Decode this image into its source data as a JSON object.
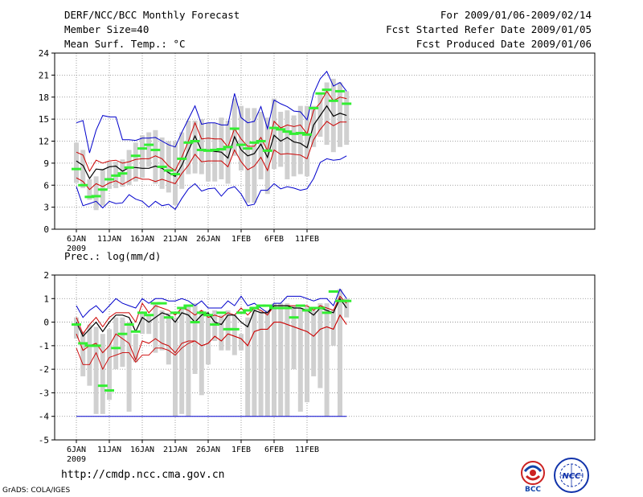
{
  "header": {
    "title": "DERF/NCC/BCC Monthly Forecast",
    "member": "Member Size=40",
    "variable": "Mean Surf. Temp.: °C",
    "period": "For 2009/01/06-2009/02/14",
    "refer": "Fcst Started Refer Date 2009/01/05",
    "produced": "Fcst Produced Date 2009/01/06"
  },
  "footer": {
    "url": "http://cmdp.ncc.cma.gov.cn",
    "credit": "GrADS: COLA/IGES"
  },
  "logos": {
    "bcc": "BCC",
    "ncc": "NCC"
  },
  "colors": {
    "envelope": "#0000cc",
    "spread": "#cc0000",
    "mean": "#000000",
    "member_box": "#d0d0d0",
    "observed": "#33ee33",
    "grid": "#888888"
  },
  "chart_data": [
    {
      "type": "box_line",
      "title": "Mean Surf. Temp.: °C",
      "ylim": [
        0,
        24
      ],
      "yticks": [
        0,
        3,
        6,
        9,
        12,
        15,
        18,
        21,
        24
      ],
      "xtick_labels": [
        "6JAN",
        "11JAN",
        "16JAN",
        "21JAN",
        "26JAN",
        "1FEB",
        "6FEB",
        "11FEB"
      ],
      "xtick_year": "2009",
      "max": [
        14.5,
        14.8,
        10.4,
        13.5,
        15.5,
        15.3,
        15.3,
        12.2,
        12.2,
        12.1,
        12.4,
        12.4,
        12.5,
        12.0,
        11.5,
        11.2,
        13.2,
        15.0,
        16.8,
        14.3,
        14.5,
        14.5,
        14.2,
        14.2,
        18.5,
        15.2,
        14.5,
        14.7,
        16.7,
        13.7,
        17.6,
        17.1,
        16.7,
        16.1,
        16.0,
        14.9,
        18.5,
        20.5,
        21.5,
        19.5,
        20.0,
        18.8
      ],
      "p75": [
        10.5,
        10.1,
        7.9,
        9.4,
        9.0,
        9.3,
        9.4,
        9.0,
        9.2,
        9.5,
        9.6,
        9.6,
        10.0,
        9.6,
        8.6,
        8.0,
        9.8,
        12.0,
        14.5,
        12.3,
        12.4,
        12.3,
        12.3,
        11.2,
        13.7,
        12.3,
        11.3,
        11.3,
        12.5,
        10.7,
        14.7,
        13.8,
        14.2,
        14.0,
        14.2,
        13.0,
        16.2,
        17.2,
        18.8,
        17.5,
        18.0,
        17.8
      ],
      "mean": [
        9.3,
        8.7,
        6.9,
        8.2,
        8.1,
        8.5,
        8.6,
        7.9,
        8.4,
        8.4,
        8.3,
        8.3,
        8.6,
        8.3,
        7.7,
        7.2,
        8.7,
        10.7,
        12.7,
        10.7,
        10.8,
        10.6,
        10.5,
        9.7,
        12.6,
        10.8,
        10.0,
        10.3,
        11.6,
        9.8,
        12.8,
        12.0,
        12.5,
        11.9,
        11.7,
        11.1,
        14.2,
        15.5,
        16.8,
        15.4,
        15.8,
        15.5
      ],
      "p25": [
        7.0,
        6.5,
        5.4,
        6.2,
        5.8,
        6.3,
        6.6,
        6.1,
        6.6,
        7.1,
        6.8,
        6.8,
        6.5,
        6.8,
        6.5,
        6.2,
        7.6,
        8.7,
        10.2,
        9.2,
        9.3,
        9.3,
        9.3,
        8.5,
        10.8,
        9.2,
        8.1,
        8.6,
        9.8,
        8.0,
        10.8,
        10.2,
        10.3,
        10.2,
        10.1,
        9.6,
        12.2,
        13.6,
        14.7,
        14.1,
        14.6,
        14.6
      ],
      "min": [
        5.8,
        3.2,
        3.5,
        3.8,
        2.9,
        3.8,
        3.5,
        3.6,
        4.7,
        4.1,
        3.8,
        3.0,
        3.8,
        3.2,
        3.4,
        2.7,
        4.2,
        5.5,
        6.2,
        5.2,
        5.5,
        5.6,
        4.5,
        5.5,
        5.8,
        4.8,
        3.2,
        3.4,
        5.3,
        5.3,
        6.2,
        5.5,
        5.8,
        5.6,
        5.3,
        5.5,
        6.9,
        9.1,
        9.6,
        9.4,
        9.5,
        10.0
      ],
      "box_high": [
        11.8,
        10.8,
        6.8,
        7.2,
        8.2,
        9.2,
        9.2,
        9.5,
        10.8,
        11.8,
        12.8,
        13.2,
        13.5,
        12.5,
        12.0,
        12.0,
        13.2,
        14.8,
        14.8,
        15.0,
        14.5,
        14.5,
        15.2,
        14.8,
        17.8,
        16.8,
        16.5,
        16.5,
        16.0,
        15.2,
        17.8,
        16.0,
        16.2,
        15.5,
        16.8,
        16.8,
        16.8,
        18.5,
        20.0,
        20.5,
        20.0,
        18.8
      ],
      "box_low": [
        6.3,
        5.6,
        4.0,
        2.6,
        3.2,
        5.5,
        5.6,
        5.8,
        6.0,
        6.5,
        7.0,
        8.5,
        6.2,
        5.5,
        5.0,
        3.3,
        5.5,
        7.5,
        7.6,
        7.5,
        6.5,
        6.5,
        6.8,
        6.2,
        10.0,
        8.0,
        3.6,
        3.6,
        6.8,
        4.8,
        8.2,
        8.5,
        6.8,
        7.2,
        7.5,
        7.2,
        11.2,
        12.6,
        11.5,
        10.5,
        11.2,
        11.5
      ],
      "observed": [
        8.2,
        6.0,
        4.4,
        4.5,
        5.4,
        6.8,
        7.3,
        7.6,
        8.4,
        10.0,
        11.0,
        11.5,
        10.8,
        8.5,
        8.0,
        7.5,
        9.6,
        11.8,
        12.0,
        10.8,
        10.7,
        10.8,
        10.9,
        11.2,
        13.7,
        11.5,
        11.0,
        11.8,
        12.0,
        10.7,
        13.8,
        13.6,
        13.3,
        13.0,
        13.1,
        12.9,
        16.5,
        18.5,
        19.0,
        17.5,
        18.8,
        17.1
      ]
    },
    {
      "type": "box_line",
      "title": "Prec.: log(mm/d)",
      "ylim": [
        -5,
        2
      ],
      "yticks": [
        -5,
        -4,
        -3,
        -2,
        -1,
        0,
        1,
        2
      ],
      "xtick_labels": [
        "6JAN",
        "11JAN",
        "16JAN",
        "21JAN",
        "26JAN",
        "1FEB",
        "6FEB",
        "11FEB"
      ],
      "xtick_year": "2009",
      "max": [
        0.7,
        0.2,
        0.5,
        0.7,
        0.4,
        0.7,
        1.0,
        0.8,
        0.7,
        0.6,
        1.0,
        0.8,
        1.0,
        1.0,
        0.9,
        0.9,
        1.0,
        0.9,
        0.7,
        0.9,
        0.6,
        0.6,
        0.6,
        0.9,
        0.7,
        1.1,
        0.7,
        0.8,
        0.6,
        0.4,
        0.8,
        0.8,
        1.1,
        1.1,
        1.1,
        1.0,
        0.9,
        1.0,
        1.0,
        0.7,
        1.4,
        1.0
      ],
      "p75": [
        0.2,
        -0.5,
        -0.1,
        0.2,
        -0.2,
        0.2,
        0.4,
        0.4,
        0.4,
        0.0,
        0.8,
        0.4,
        0.7,
        0.6,
        0.5,
        0.3,
        0.6,
        0.5,
        0.3,
        0.5,
        0.2,
        0.3,
        0.2,
        0.4,
        0.3,
        0.6,
        0.3,
        0.6,
        0.5,
        0.3,
        0.7,
        0.7,
        0.7,
        0.7,
        0.7,
        0.7,
        0.5,
        0.7,
        0.6,
        0.5,
        1.1,
        0.8
      ],
      "mean": [
        0.0,
        -0.6,
        -0.3,
        0.0,
        -0.4,
        0.0,
        0.3,
        0.3,
        0.2,
        -0.4,
        0.2,
        0.0,
        0.2,
        0.4,
        0.3,
        0.0,
        0.4,
        0.3,
        0.0,
        0.3,
        0.4,
        0.0,
        -0.1,
        0.3,
        0.3,
        0.0,
        -0.2,
        0.5,
        0.4,
        0.4,
        0.7,
        0.7,
        0.7,
        0.6,
        0.6,
        0.5,
        0.3,
        0.6,
        0.5,
        0.4,
        1.0,
        0.6
      ],
      "p25": [
        -0.5,
        -1.2,
        -1.0,
        -0.9,
        -1.3,
        -1.0,
        -0.5,
        -0.7,
        -0.9,
        -1.6,
        -0.8,
        -0.9,
        -0.7,
        -0.9,
        -1.0,
        -1.3,
        -0.9,
        -0.8,
        -0.8,
        -1.0,
        -0.9,
        -0.6,
        -0.8,
        -0.5,
        -0.6,
        -0.7,
        -1.0,
        -0.4,
        -0.3,
        -0.3,
        0.0,
        0.0,
        -0.1,
        -0.2,
        -0.3,
        -0.4,
        -0.6,
        -0.3,
        -0.2,
        -0.3,
        0.3,
        -0.1
      ],
      "p10": [
        -1.1,
        -1.8,
        -1.8,
        -1.3,
        -2.0,
        -1.5,
        -1.4,
        -1.3,
        -1.3,
        -1.7,
        -1.4,
        -1.4,
        -1.1,
        -1.1,
        -1.2,
        -1.4,
        -1.1,
        -0.9,
        -0.8,
        -1.0,
        -0.9,
        -0.6,
        -0.8,
        -0.5,
        -0.6,
        -0.7,
        -1.0,
        -0.4,
        -0.3,
        -0.3,
        0.0,
        0.0,
        -0.1,
        -0.2,
        -0.3,
        -0.4,
        -0.6,
        -0.3,
        -0.2,
        -0.3,
        0.3,
        -0.1
      ],
      "min": [
        -4.0,
        -4.0,
        -4.0,
        -4.0,
        -4.0,
        -4.0,
        -4.0,
        -4.0,
        -4.0,
        -4.0,
        -4.0,
        -4.0,
        -4.0,
        -4.0,
        -4.0,
        -4.0,
        -4.0,
        -4.0,
        -4.0,
        -4.0,
        -4.0,
        -4.0,
        -4.0,
        -4.0,
        -4.0,
        -4.0,
        -4.0,
        -4.0,
        -4.0,
        -4.0,
        -4.0,
        -4.0,
        -4.0,
        -4.0,
        -4.0,
        -4.0,
        -4.0,
        -4.0,
        -4.0,
        -4.0,
        -4.0,
        -4.0
      ],
      "box_high": [
        0.2,
        -0.4,
        -0.1,
        -0.2,
        -0.5,
        -0.3,
        0.2,
        0.2,
        0.0,
        -0.5,
        0.4,
        0.3,
        0.8,
        0.5,
        0.4,
        0.2,
        0.6,
        0.7,
        0.8,
        0.5,
        0.3,
        0.5,
        0.3,
        0.5,
        0.3,
        -0.5,
        0.2,
        0.6,
        0.5,
        0.5,
        0.8,
        0.8,
        0.8,
        0.7,
        0.6,
        0.7,
        0.5,
        0.8,
        0.8,
        0.5,
        1.4,
        1.0
      ],
      "box_low": [
        -0.7,
        -2.3,
        -2.7,
        -3.9,
        -3.9,
        -3.3,
        -2.0,
        -1.9,
        -3.8,
        -1.7,
        -0.5,
        -0.5,
        -1.3,
        -1.2,
        -1.8,
        -4.0,
        -3.9,
        -4.0,
        -2.2,
        -3.1,
        -1.8,
        -0.8,
        -1.2,
        -1.2,
        -1.4,
        -1.2,
        -4.0,
        -4.0,
        -4.0,
        -4.0,
        -4.0,
        -4.0,
        -4.0,
        -2.0,
        -3.8,
        -3.4,
        -2.3,
        -2.8,
        -4.0,
        -1.0,
        -4.0,
        0.2
      ],
      "observed": [
        -0.1,
        -0.9,
        -1.0,
        -1.0,
        -2.7,
        -2.9,
        -1.1,
        -0.5,
        -0.1,
        -0.4,
        0.4,
        0.3,
        0.8,
        0.8,
        0.2,
        0.4,
        0.6,
        0.7,
        0.0,
        0.4,
        0.3,
        -0.1,
        0.4,
        -0.3,
        -0.3,
        0.4,
        0.5,
        0.6,
        0.7,
        0.7,
        0.6,
        0.6,
        0.6,
        0.2,
        0.7,
        0.5,
        0.6,
        0.6,
        0.4,
        1.3,
        0.9,
        0.9
      ]
    }
  ]
}
